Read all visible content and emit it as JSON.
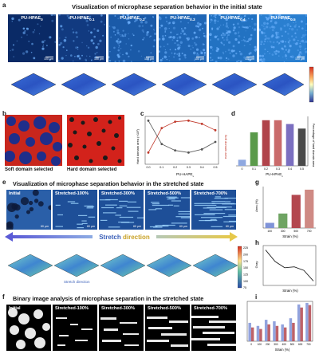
{
  "panel_a": {
    "label": "a",
    "title": "Visualization of microphase separation behavior in the initial state",
    "images": [
      {
        "label": "PU-HPAE",
        "sub": "0",
        "scale": "100 μm",
        "tone": "#0a2a66"
      },
      {
        "label": "PU-HPAE",
        "sub": "0.1",
        "scale": "100 μm",
        "tone": "#113a80"
      },
      {
        "label": "PU-HPAE",
        "sub": "0.2",
        "scale": "100 μm",
        "tone": "#1a5aa8"
      },
      {
        "label": "PU-HPAE",
        "sub": "0.3",
        "scale": "100 μm",
        "tone": "#1f66b6"
      },
      {
        "label": "PU-HPAE",
        "sub": "0.4",
        "scale": "100 μm",
        "tone": "#2272c2"
      },
      {
        "label": "PU-HPAE",
        "sub": "0.5",
        "scale": "100 μm",
        "tone": "#2a7fd0"
      }
    ]
  },
  "panel_b": {
    "label": "b",
    "captions": [
      "Soft domain selected",
      "Hard domain selected"
    ]
  },
  "panel_c": {
    "label": "c",
    "ylabel_left": "Hard domain area (×10²)",
    "ylabel_right": "Soft domain area",
    "xlabel": "PU-HAPE",
    "xlabel_sub": "x",
    "chart_data": {
      "type": "line",
      "x": [
        0,
        0.1,
        0.2,
        0.3,
        0.4,
        0.5
      ],
      "xticks": [
        "0.0",
        "0.1",
        "0.2",
        "0.3",
        "0.4",
        "0.5"
      ],
      "series": [
        {
          "values": [
            11,
            34,
            40,
            41,
            38,
            32
          ],
          "color": "#c0392b"
        },
        {
          "values": [
            41,
            19,
            13,
            11,
            14,
            21
          ],
          "color": "#555555"
        }
      ]
    }
  },
  "panel_d": {
    "label": "d",
    "ylabel": "Percentage of hard domain area",
    "xlabel": "PU-HPAE",
    "xlabel_sub": "x",
    "chart_data": {
      "type": "bar",
      "categories": [
        "0",
        "0.1",
        "0.2",
        "0.3",
        "0.4",
        "0.5"
      ],
      "values": [
        8,
        44,
        60,
        60,
        55,
        49
      ],
      "colors": [
        "#8fa8e0",
        "#5a9a4a",
        "#b0434a",
        "#c96a6a",
        "#7b6fc0",
        "#4a4a4a"
      ]
    }
  },
  "panel_e": {
    "label": "e",
    "title": "Visualization of microphase separation behavior in the stretched state",
    "images": [
      {
        "label": "Initial",
        "scale": "60 μm"
      },
      {
        "label": "Stretched-100%",
        "scale": "60 μm"
      },
      {
        "label": "Stretched-300%",
        "scale": "60 μm"
      },
      {
        "label": "Stretched-500%",
        "scale": "60 μm"
      },
      {
        "label": "Stretched-700%",
        "scale": "60 μm"
      }
    ],
    "arrow_text_1": "Stretch",
    "arrow_text_2": "direction",
    "stretch_label": "Stretch direction",
    "colorbar_ticks": [
      "225",
      "200",
      "175",
      "150",
      "125",
      "100",
      "75"
    ]
  },
  "panel_g": {
    "label": "g",
    "ylabel": "Area (%)",
    "xlabel": "Strain (%)",
    "chart_data": {
      "type": "bar",
      "categories": [
        "100",
        "300",
        "500",
        "700"
      ],
      "values": [
        5,
        14,
        32,
        37
      ],
      "colors": [
        "#7f93d8",
        "#6fa463",
        "#b3474f",
        "#cf8a84"
      ]
    }
  },
  "panel_h": {
    "label": "h",
    "ylabel": "Gray",
    "xlabel": "Strain (%)",
    "chart_data": {
      "type": "line",
      "series": [
        {
          "values": [
            75,
            62,
            55,
            56,
            52,
            40
          ],
          "color": "#222222"
        }
      ]
    }
  },
  "panel_f": {
    "label": "f",
    "title": "Binary image analysis of microphase separation in the stretched state",
    "images": [
      {
        "label": "Initial"
      },
      {
        "label": "Stretched-100%"
      },
      {
        "label": "Stretched-300%"
      },
      {
        "label": "Stretched-500%"
      },
      {
        "label": "Stretched-700%"
      }
    ]
  },
  "panel_i": {
    "label": "i",
    "xlabel": "Strain (%)",
    "chart_data": {
      "type": "bar",
      "categories": [
        "0",
        "100",
        "200",
        "300",
        "400",
        "500",
        "600",
        "700"
      ],
      "series": [
        {
          "values": [
            60,
            50,
            70,
            65,
            55,
            75,
            120,
            125
          ],
          "color": "#7f93d8"
        },
        {
          "values": [
            45,
            40,
            55,
            50,
            45,
            60,
            110,
            118
          ],
          "color": "#b3474f"
        }
      ]
    }
  }
}
